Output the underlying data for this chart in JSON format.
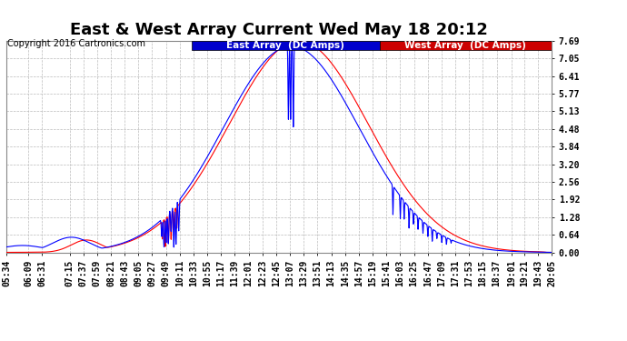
{
  "title": "East & West Array Current Wed May 18 20:12",
  "copyright": "Copyright 2016 Cartronics.com",
  "legend_east": "East Array  (DC Amps)",
  "legend_west": "West Array  (DC Amps)",
  "legend_east_bg": "#0000cc",
  "legend_west_bg": "#cc0000",
  "east_color": "#0000ff",
  "west_color": "#ff0000",
  "bg_color": "#ffffff",
  "plot_bg_color": "#ffffff",
  "grid_color": "#bbbbbb",
  "yticks": [
    0.0,
    0.64,
    1.28,
    1.92,
    2.56,
    3.2,
    3.84,
    4.48,
    5.13,
    5.77,
    6.41,
    7.05,
    7.69
  ],
  "ylim": [
    0.0,
    7.69
  ],
  "xtick_labels": [
    "05:34",
    "06:09",
    "06:31",
    "07:15",
    "07:37",
    "07:59",
    "08:21",
    "08:43",
    "09:05",
    "09:27",
    "09:49",
    "10:11",
    "10:33",
    "10:55",
    "11:17",
    "11:39",
    "12:01",
    "12:23",
    "12:45",
    "13:07",
    "13:29",
    "13:51",
    "14:13",
    "14:35",
    "14:57",
    "15:19",
    "15:41",
    "16:03",
    "16:25",
    "16:47",
    "17:09",
    "17:31",
    "17:53",
    "18:15",
    "18:37",
    "19:01",
    "19:21",
    "19:43",
    "20:05"
  ],
  "title_fontsize": 13,
  "copyright_fontsize": 7,
  "tick_fontsize": 7,
  "legend_fontsize": 7.5
}
